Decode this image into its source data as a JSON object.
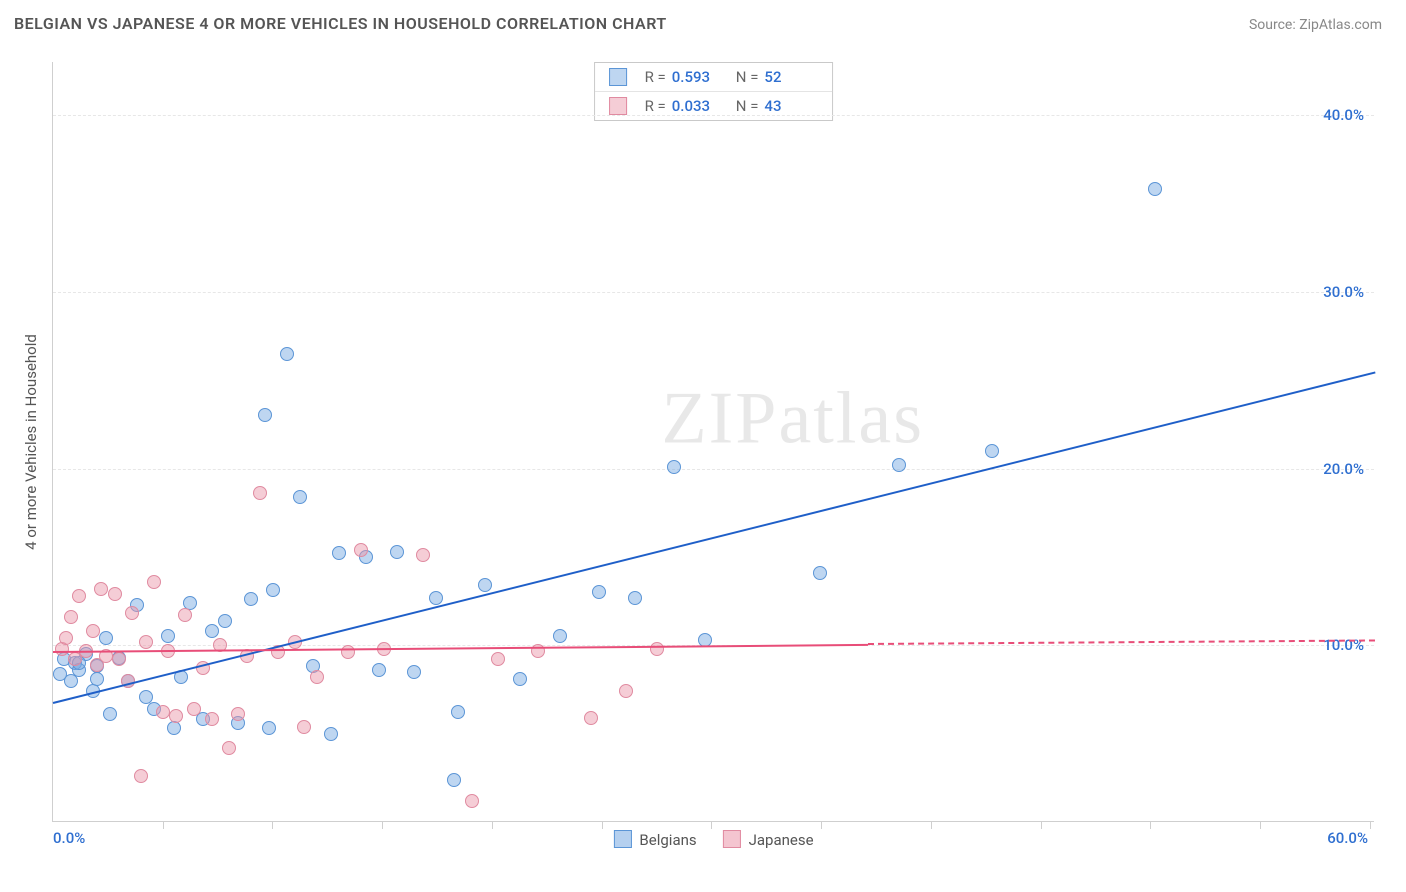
{
  "header": {
    "title": "BELGIAN VS JAPANESE 4 OR MORE VEHICLES IN HOUSEHOLD CORRELATION CHART",
    "source": "Source: ZipAtlas.com"
  },
  "chart": {
    "type": "scatter",
    "y_axis_label": "4 or more Vehicles in Household",
    "x_min": 0,
    "x_max": 60,
    "y_min": 0,
    "y_max": 43,
    "x_tick_interval_pct": 8.3,
    "y_ticks": [
      {
        "value": 10,
        "label": "10.0%",
        "color": "#2f6fd0"
      },
      {
        "value": 20,
        "label": "20.0%",
        "color": "#2f6fd0"
      },
      {
        "value": 30,
        "label": "30.0%",
        "color": "#2f6fd0"
      },
      {
        "value": 40,
        "label": "40.0%",
        "color": "#2f6fd0"
      }
    ],
    "x_start_label": "0.0%",
    "x_end_label": "60.0%",
    "axis_label_color": "#2f6fd0",
    "background_color": "#ffffff",
    "grid_color": "#e7e7e7",
    "point_radius": 7,
    "series": [
      {
        "name": "Belgians",
        "fill": "rgba(120,170,225,0.48)",
        "stroke": "#5b95d6",
        "trend_color": "#1f5fc8",
        "R": "0.593",
        "N": "52",
        "trend_start": {
          "x": 0,
          "y": 6.8
        },
        "trend_end_solid": {
          "x": 60,
          "y": 25.5
        },
        "trend_end_dash": null,
        "points": [
          [
            0.3,
            8.4
          ],
          [
            0.5,
            9.2
          ],
          [
            0.8,
            8.0
          ],
          [
            1.0,
            9.0
          ],
          [
            1.2,
            8.6
          ],
          [
            1.5,
            9.5
          ],
          [
            1.8,
            7.4
          ],
          [
            2.0,
            8.8
          ],
          [
            2.4,
            10.4
          ],
          [
            2.6,
            6.1
          ],
          [
            3.0,
            9.3
          ],
          [
            3.4,
            8.0
          ],
          [
            3.8,
            12.3
          ],
          [
            4.2,
            7.1
          ],
          [
            4.6,
            6.4
          ],
          [
            5.2,
            10.5
          ],
          [
            5.5,
            5.3
          ],
          [
            5.8,
            8.2
          ],
          [
            6.2,
            12.4
          ],
          [
            6.8,
            5.8
          ],
          [
            7.2,
            10.8
          ],
          [
            7.8,
            11.4
          ],
          [
            8.4,
            5.6
          ],
          [
            9.0,
            12.6
          ],
          [
            9.6,
            23.0
          ],
          [
            9.8,
            5.3
          ],
          [
            10.0,
            13.1
          ],
          [
            10.6,
            26.5
          ],
          [
            11.2,
            18.4
          ],
          [
            11.8,
            8.8
          ],
          [
            12.6,
            5.0
          ],
          [
            13.0,
            15.2
          ],
          [
            14.2,
            15.0
          ],
          [
            14.8,
            8.6
          ],
          [
            15.6,
            15.3
          ],
          [
            16.4,
            8.5
          ],
          [
            17.4,
            12.7
          ],
          [
            18.2,
            2.4
          ],
          [
            18.4,
            6.2
          ],
          [
            19.6,
            13.4
          ],
          [
            21.2,
            8.1
          ],
          [
            23.0,
            10.5
          ],
          [
            24.8,
            13.0
          ],
          [
            26.4,
            12.7
          ],
          [
            28.2,
            20.1
          ],
          [
            29.6,
            10.3
          ],
          [
            34.8,
            14.1
          ],
          [
            38.4,
            20.2
          ],
          [
            42.6,
            21.0
          ],
          [
            50.0,
            35.8
          ],
          [
            1.2,
            9.0
          ],
          [
            2.0,
            8.1
          ]
        ]
      },
      {
        "name": "Japanese",
        "fill": "rgba(235,150,170,0.48)",
        "stroke": "#e08aa0",
        "trend_color": "#e84d78",
        "R": "0.033",
        "N": "43",
        "trend_start": {
          "x": 0,
          "y": 9.7
        },
        "trend_end_solid": {
          "x": 37,
          "y": 10.1
        },
        "trend_end_dash": {
          "x": 60,
          "y": 10.3
        },
        "points": [
          [
            0.4,
            9.8
          ],
          [
            0.6,
            10.4
          ],
          [
            0.8,
            11.6
          ],
          [
            1.0,
            9.2
          ],
          [
            1.2,
            12.8
          ],
          [
            1.5,
            9.7
          ],
          [
            1.8,
            10.8
          ],
          [
            2.0,
            8.9
          ],
          [
            2.2,
            13.2
          ],
          [
            2.4,
            9.4
          ],
          [
            2.8,
            12.9
          ],
          [
            3.0,
            9.2
          ],
          [
            3.4,
            8.0
          ],
          [
            3.6,
            11.8
          ],
          [
            4.0,
            2.6
          ],
          [
            4.2,
            10.2
          ],
          [
            4.6,
            13.6
          ],
          [
            5.0,
            6.2
          ],
          [
            5.2,
            9.7
          ],
          [
            5.6,
            6.0
          ],
          [
            6.0,
            11.7
          ],
          [
            6.4,
            6.4
          ],
          [
            6.8,
            8.7
          ],
          [
            7.2,
            5.8
          ],
          [
            7.6,
            10.0
          ],
          [
            8.0,
            4.2
          ],
          [
            8.4,
            6.1
          ],
          [
            8.8,
            9.4
          ],
          [
            9.4,
            18.6
          ],
          [
            10.2,
            9.6
          ],
          [
            11.0,
            10.2
          ],
          [
            11.4,
            5.4
          ],
          [
            12.0,
            8.2
          ],
          [
            13.4,
            9.6
          ],
          [
            14.0,
            15.4
          ],
          [
            15.0,
            9.8
          ],
          [
            16.8,
            15.1
          ],
          [
            19.0,
            1.2
          ],
          [
            20.2,
            9.2
          ],
          [
            22.0,
            9.7
          ],
          [
            24.4,
            5.9
          ],
          [
            26.0,
            7.4
          ],
          [
            27.4,
            9.8
          ]
        ]
      }
    ],
    "legend_bottom": [
      {
        "label": "Belgians",
        "fill": "rgba(120,170,225,0.55)",
        "stroke": "#5b95d6"
      },
      {
        "label": "Japanese",
        "fill": "rgba(235,150,170,0.55)",
        "stroke": "#e08aa0"
      }
    ],
    "watermark": {
      "zip": "ZIP",
      "atlas": "atlas"
    }
  }
}
